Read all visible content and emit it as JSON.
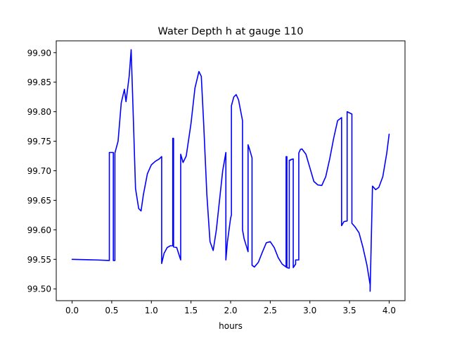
{
  "chart_data": {
    "type": "line",
    "title": "Water Depth h at gauge 110",
    "xlabel": "hours",
    "ylabel": "",
    "xlim": [
      -0.2,
      4.2
    ],
    "ylim": [
      99.48,
      99.92
    ],
    "xticks": [
      0.0,
      0.5,
      1.0,
      1.5,
      2.0,
      2.5,
      3.0,
      3.5,
      4.0
    ],
    "xtick_labels": [
      "0.0",
      "0.5",
      "1.0",
      "1.5",
      "2.0",
      "2.5",
      "3.0",
      "3.5",
      "4.0"
    ],
    "yticks": [
      99.5,
      99.55,
      99.6,
      99.65,
      99.7,
      99.75,
      99.8,
      99.85,
      99.9
    ],
    "ytick_labels": [
      "99.50",
      "99.55",
      "99.60",
      "99.65",
      "99.70",
      "99.75",
      "99.80",
      "99.85",
      "99.90"
    ],
    "grid": false,
    "line_color": "#0000ff",
    "series": [
      {
        "name": "",
        "x": [
          0.0,
          0.3,
          0.47,
          0.47,
          0.52,
          0.52,
          0.54,
          0.54,
          0.58,
          0.62,
          0.66,
          0.68,
          0.72,
          0.745,
          0.77,
          0.8,
          0.84,
          0.87,
          0.9,
          0.95,
          1.0,
          1.05,
          1.1,
          1.13,
          1.13,
          1.16,
          1.2,
          1.24,
          1.27,
          1.27,
          1.28,
          1.28,
          1.32,
          1.36,
          1.37,
          1.37,
          1.4,
          1.44,
          1.5,
          1.55,
          1.6,
          1.63,
          1.66,
          1.7,
          1.74,
          1.78,
          1.82,
          1.86,
          1.9,
          1.94,
          1.94,
          1.96,
          2.0,
          2.01,
          2.01,
          2.04,
          2.07,
          2.1,
          2.15,
          2.15,
          2.17,
          2.22,
          2.22,
          2.24,
          2.27,
          2.27,
          2.3,
          2.35,
          2.4,
          2.45,
          2.5,
          2.55,
          2.6,
          2.65,
          2.7,
          2.7,
          2.71,
          2.71,
          2.74,
          2.74,
          2.76,
          2.76,
          2.79,
          2.79,
          2.82,
          2.82,
          2.86,
          2.86,
          2.88,
          2.9,
          2.95,
          3.0,
          3.05,
          3.1,
          3.15,
          3.2,
          3.25,
          3.3,
          3.35,
          3.4,
          3.4,
          3.43,
          3.47,
          3.47,
          3.53,
          3.53,
          3.57,
          3.62,
          3.67,
          3.72,
          3.76,
          3.76,
          3.79,
          3.83,
          3.87,
          3.92,
          3.97,
          4.0
        ],
        "y": [
          99.55,
          99.549,
          99.548,
          99.731,
          99.731,
          99.548,
          99.548,
          99.73,
          99.75,
          99.815,
          99.838,
          99.817,
          99.86,
          99.905,
          99.8,
          99.67,
          99.636,
          99.632,
          99.66,
          99.695,
          99.71,
          99.716,
          99.72,
          99.724,
          99.543,
          99.56,
          99.57,
          99.573,
          99.573,
          99.755,
          99.755,
          99.571,
          99.57,
          99.553,
          99.549,
          99.728,
          99.714,
          99.725,
          99.78,
          99.84,
          99.868,
          99.86,
          99.78,
          99.66,
          99.58,
          99.565,
          99.6,
          99.65,
          99.7,
          99.731,
          99.549,
          99.58,
          99.62,
          99.625,
          99.81,
          99.825,
          99.829,
          99.82,
          99.785,
          99.6,
          99.585,
          99.563,
          99.744,
          99.736,
          99.722,
          99.54,
          99.537,
          99.545,
          99.562,
          99.578,
          99.58,
          99.57,
          99.553,
          99.542,
          99.537,
          99.724,
          99.724,
          99.536,
          99.535,
          99.718,
          99.718,
          99.719,
          99.72,
          99.536,
          99.542,
          99.549,
          99.549,
          99.73,
          99.736,
          99.737,
          99.728,
          99.705,
          99.682,
          99.676,
          99.675,
          99.69,
          99.72,
          99.755,
          99.785,
          99.79,
          99.607,
          99.614,
          99.615,
          99.8,
          99.796,
          99.611,
          99.605,
          99.595,
          99.57,
          99.54,
          99.507,
          99.496,
          99.674,
          99.668,
          99.672,
          99.69,
          99.73,
          99.762
        ]
      }
    ]
  }
}
